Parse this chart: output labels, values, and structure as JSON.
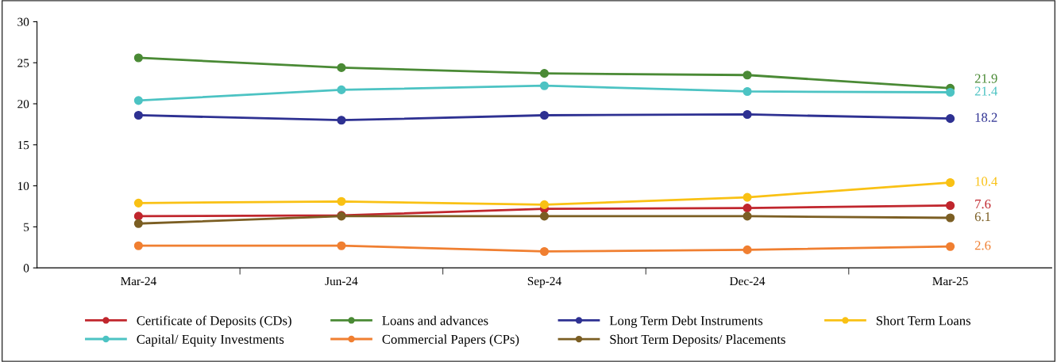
{
  "chart_data": {
    "type": "line",
    "categories": [
      "Mar-24",
      "Jun-24",
      "Sep-24",
      "Dec-24",
      "Mar-25"
    ],
    "ylim": [
      0,
      30
    ],
    "yticks": [
      0,
      5,
      10,
      15,
      20,
      25,
      30
    ],
    "grid": false,
    "legend": "bottom",
    "marker": "circle",
    "line_style": "solid",
    "series": [
      {
        "name": "Certificate of Deposits (CDs)",
        "color": "#c0262d",
        "values": [
          6.3,
          6.4,
          7.2,
          7.3,
          7.6
        ],
        "value_labels": [
          null,
          null,
          null,
          null,
          "7.6"
        ]
      },
      {
        "name": "Loans and advances",
        "color": "#4a8a35",
        "values": [
          25.6,
          24.4,
          23.7,
          23.5,
          21.9
        ],
        "value_labels": [
          null,
          null,
          null,
          null,
          "21.9"
        ]
      },
      {
        "name": "Long Term Debt Instruments",
        "color": "#2e3192",
        "values": [
          18.6,
          18.0,
          18.6,
          18.7,
          18.2
        ],
        "value_labels": [
          null,
          null,
          null,
          null,
          "18.2"
        ]
      },
      {
        "name": "Short Term Loans",
        "color": "#f9c114",
        "values": [
          7.9,
          8.1,
          7.7,
          8.6,
          10.4
        ],
        "value_labels": [
          null,
          null,
          null,
          null,
          "10.4"
        ]
      },
      {
        "name": "Capital/ Equity Investments",
        "color": "#4cc3c3",
        "values": [
          20.4,
          21.7,
          22.2,
          21.5,
          21.4
        ],
        "value_labels": [
          null,
          null,
          null,
          null,
          "21.4"
        ]
      },
      {
        "name": "Commercial Papers (CPs)",
        "color": "#f07f31",
        "values": [
          2.7,
          2.7,
          2.0,
          2.2,
          2.6
        ],
        "value_labels": [
          null,
          null,
          null,
          null,
          "2.6"
        ]
      },
      {
        "name": "Short Term Deposits/ Placements",
        "color": "#7b5e23",
        "values": [
          5.4,
          6.3,
          6.3,
          6.3,
          6.1
        ],
        "value_labels": [
          null,
          null,
          null,
          null,
          "6.1"
        ]
      }
    ]
  }
}
